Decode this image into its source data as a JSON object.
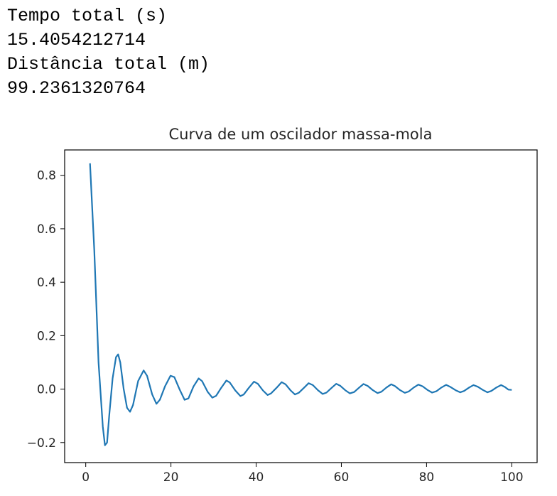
{
  "console": {
    "lines": [
      "Tempo total (s)",
      "15.4054212714",
      "Distância total (m)",
      "99.2361320764"
    ]
  },
  "chart_data": {
    "type": "line",
    "title": "Curva de um oscilador massa-mola",
    "xlabel": "",
    "ylabel": "",
    "xlim": [
      -4.95,
      105.95
    ],
    "ylim": [
      -0.275,
      0.895
    ],
    "xticks": [
      0,
      20,
      40,
      60,
      80,
      100
    ],
    "yticks": [
      -0.2,
      0.0,
      0.2,
      0.4,
      0.6,
      0.8
    ],
    "xtick_labels": [
      "0",
      "20",
      "40",
      "60",
      "80",
      "100"
    ],
    "ytick_labels": [
      "−0.2",
      "0.0",
      "0.2",
      "0.4",
      "0.6",
      "0.8"
    ],
    "grid": false,
    "series": [
      {
        "color": "#1f77b4",
        "x": [
          1.0,
          2.0,
          3.0,
          4.0,
          4.5,
          5.0,
          5.5,
          6.3,
          7.1,
          7.6,
          8.1,
          8.9,
          9.7,
          10.4,
          11.1,
          12.3,
          13.6,
          14.4,
          15.6,
          16.6,
          17.4,
          18.6,
          19.9,
          20.8,
          22.0,
          23.2,
          24.1,
          25.3,
          26.5,
          27.3,
          28.6,
          29.7,
          30.6,
          31.8,
          33.0,
          33.8,
          35.1,
          36.3,
          37.1,
          38.3,
          39.5,
          40.4,
          41.6,
          42.7,
          43.5,
          44.8,
          46.0,
          46.9,
          48.1,
          49.1,
          50.0,
          51.3,
          52.3,
          53.3,
          54.5,
          55.6,
          56.5,
          57.8,
          58.8,
          59.7,
          60.9,
          62.0,
          63.0,
          64.2,
          65.2,
          66.2,
          67.4,
          68.5,
          69.4,
          70.6,
          71.7,
          72.6,
          73.8,
          74.9,
          75.8,
          77.0,
          78.1,
          79.1,
          80.3,
          81.3,
          82.3,
          83.5,
          84.6,
          85.5,
          86.8,
          87.9,
          88.8,
          90.0,
          91.0,
          92.0,
          93.2,
          94.3,
          95.2,
          96.4,
          97.5,
          98.4,
          99.2,
          100.0
        ],
        "y": [
          0.845,
          0.52,
          0.1,
          -0.14,
          -0.21,
          -0.2,
          -0.1,
          0.04,
          0.12,
          0.13,
          0.1,
          0.0,
          -0.07,
          -0.085,
          -0.06,
          0.03,
          0.07,
          0.05,
          -0.02,
          -0.055,
          -0.04,
          0.01,
          0.05,
          0.045,
          0.0,
          -0.04,
          -0.035,
          0.01,
          0.04,
          0.03,
          -0.01,
          -0.032,
          -0.025,
          0.005,
          0.032,
          0.025,
          -0.005,
          -0.026,
          -0.02,
          0.005,
          0.028,
          0.02,
          -0.005,
          -0.022,
          -0.016,
          0.005,
          0.026,
          0.018,
          -0.005,
          -0.02,
          -0.014,
          0.006,
          0.022,
          0.015,
          -0.004,
          -0.018,
          -0.013,
          0.006,
          0.02,
          0.013,
          -0.004,
          -0.016,
          -0.011,
          0.006,
          0.019,
          0.012,
          -0.004,
          -0.015,
          -0.01,
          0.006,
          0.018,
          0.011,
          -0.004,
          -0.014,
          -0.009,
          0.006,
          0.017,
          0.01,
          -0.004,
          -0.013,
          -0.008,
          0.006,
          0.016,
          0.009,
          -0.004,
          -0.012,
          -0.007,
          0.006,
          0.015,
          0.009,
          -0.003,
          -0.012,
          -0.007,
          0.006,
          0.015,
          0.008,
          -0.002,
          -0.003
        ]
      }
    ]
  }
}
